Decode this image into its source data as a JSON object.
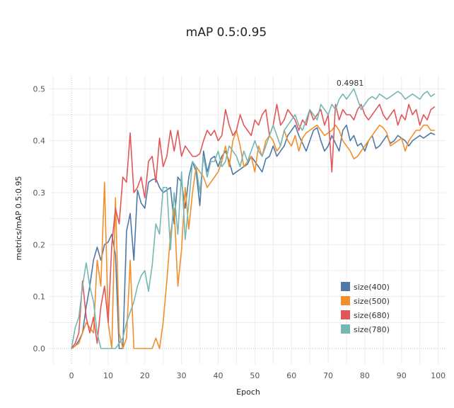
{
  "chart_data": {
    "type": "line",
    "title": "mAP 0.5:0.95",
    "xlabel": "Epoch",
    "ylabel": "metrics/mAP 0.5:0.95",
    "xlim": [
      -6,
      102
    ],
    "ylim": [
      -0.03,
      0.525
    ],
    "xticks": [
      "0",
      "10",
      "20",
      "30",
      "40",
      "50",
      "60",
      "70",
      "80",
      "90",
      "100"
    ],
    "yticks": [
      "0.0",
      "0.1",
      "0.2",
      "0.3",
      "0.4",
      "0.5"
    ],
    "grid": true,
    "legend_position": "bottom-right",
    "annotation": {
      "text": "0.4981",
      "x": 76,
      "y": 0.498
    },
    "series": [
      {
        "name": "size(400)",
        "color": "#4e79a7",
        "values": [
          0.0,
          0.005,
          0.015,
          0.03,
          0.08,
          0.12,
          0.17,
          0.195,
          0.17,
          0.2,
          0.205,
          0.22,
          0.18,
          0.0,
          0.0,
          0.225,
          0.26,
          0.17,
          0.305,
          0.28,
          0.27,
          0.32,
          0.325,
          0.327,
          0.31,
          0.3,
          0.305,
          0.31,
          0.24,
          0.33,
          0.32,
          0.27,
          0.33,
          0.36,
          0.34,
          0.275,
          0.38,
          0.34,
          0.365,
          0.37,
          0.35,
          0.37,
          0.38,
          0.36,
          0.335,
          0.34,
          0.345,
          0.35,
          0.355,
          0.37,
          0.36,
          0.35,
          0.34,
          0.365,
          0.37,
          0.39,
          0.37,
          0.38,
          0.39,
          0.41,
          0.42,
          0.43,
          0.41,
          0.395,
          0.38,
          0.4,
          0.42,
          0.425,
          0.4,
          0.38,
          0.39,
          0.41,
          0.395,
          0.38,
          0.42,
          0.43,
          0.4,
          0.41,
          0.39,
          0.395,
          0.38,
          0.4,
          0.41,
          0.385,
          0.39,
          0.4,
          0.41,
          0.395,
          0.4,
          0.41,
          0.405,
          0.4,
          0.39,
          0.4,
          0.405,
          0.41,
          0.405,
          0.41,
          0.415,
          0.412
        ]
      },
      {
        "name": "size(500)",
        "color": "#f28e2b",
        "values": [
          0.0,
          0.005,
          0.01,
          0.03,
          0.05,
          0.04,
          0.03,
          0.17,
          0.12,
          0.32,
          0.05,
          0.0,
          0.29,
          0.03,
          0.0,
          0.02,
          0.17,
          0.0,
          0.0,
          0.0,
          0.0,
          0.0,
          0.0,
          0.02,
          0.0,
          0.05,
          0.13,
          0.22,
          0.27,
          0.12,
          0.19,
          0.31,
          0.23,
          0.3,
          0.35,
          0.34,
          0.33,
          0.31,
          0.32,
          0.33,
          0.34,
          0.36,
          0.39,
          0.35,
          0.4,
          0.42,
          0.39,
          0.35,
          0.36,
          0.37,
          0.34,
          0.39,
          0.37,
          0.4,
          0.41,
          0.4,
          0.38,
          0.39,
          0.42,
          0.4,
          0.39,
          0.41,
          0.38,
          0.405,
          0.415,
          0.42,
          0.425,
          0.43,
          0.42,
          0.41,
          0.415,
          0.42,
          0.43,
          0.42,
          0.4,
          0.39,
          0.38,
          0.365,
          0.37,
          0.38,
          0.39,
          0.4,
          0.41,
          0.42,
          0.43,
          0.425,
          0.415,
          0.39,
          0.395,
          0.4,
          0.405,
          0.38,
          0.4,
          0.41,
          0.42,
          0.42,
          0.43,
          0.43,
          0.42,
          0.42
        ]
      },
      {
        "name": "size(680)",
        "color": "#e15759",
        "values": [
          0.0,
          0.01,
          0.03,
          0.13,
          0.06,
          0.03,
          0.06,
          0.01,
          0.08,
          0.12,
          0.05,
          0.2,
          0.27,
          0.24,
          0.33,
          0.32,
          0.415,
          0.3,
          0.31,
          0.33,
          0.29,
          0.36,
          0.37,
          0.32,
          0.405,
          0.35,
          0.37,
          0.42,
          0.38,
          0.42,
          0.37,
          0.39,
          0.38,
          0.37,
          0.37,
          0.375,
          0.4,
          0.42,
          0.41,
          0.42,
          0.4,
          0.41,
          0.46,
          0.43,
          0.41,
          0.42,
          0.45,
          0.43,
          0.42,
          0.41,
          0.44,
          0.43,
          0.45,
          0.46,
          0.41,
          0.43,
          0.47,
          0.43,
          0.44,
          0.46,
          0.45,
          0.44,
          0.42,
          0.44,
          0.43,
          0.46,
          0.44,
          0.45,
          0.46,
          0.43,
          0.45,
          0.34,
          0.47,
          0.44,
          0.46,
          0.45,
          0.45,
          0.44,
          0.46,
          0.47,
          0.45,
          0.44,
          0.45,
          0.46,
          0.47,
          0.45,
          0.44,
          0.45,
          0.46,
          0.43,
          0.45,
          0.44,
          0.47,
          0.45,
          0.46,
          0.43,
          0.45,
          0.44,
          0.46,
          0.465
        ]
      },
      {
        "name": "size(780)",
        "color": "#76b7b2",
        "values": [
          0.0,
          0.04,
          0.06,
          0.12,
          0.165,
          0.12,
          0.09,
          0.03,
          0.0,
          0.0,
          0.0,
          0.0,
          0.0,
          0.01,
          0.02,
          0.05,
          0.07,
          0.09,
          0.12,
          0.14,
          0.15,
          0.11,
          0.16,
          0.24,
          0.22,
          0.31,
          0.31,
          0.19,
          0.3,
          0.22,
          0.34,
          0.21,
          0.28,
          0.36,
          0.35,
          0.3,
          0.37,
          0.33,
          0.36,
          0.36,
          0.38,
          0.35,
          0.36,
          0.39,
          0.38,
          0.37,
          0.35,
          0.38,
          0.36,
          0.38,
          0.4,
          0.38,
          0.37,
          0.39,
          0.41,
          0.43,
          0.41,
          0.39,
          0.42,
          0.43,
          0.44,
          0.45,
          0.43,
          0.42,
          0.44,
          0.46,
          0.45,
          0.44,
          0.47,
          0.46,
          0.45,
          0.47,
          0.46,
          0.48,
          0.49,
          0.48,
          0.49,
          0.5,
          0.48,
          0.46,
          0.47,
          0.48,
          0.485,
          0.48,
          0.49,
          0.485,
          0.48,
          0.485,
          0.49,
          0.495,
          0.49,
          0.48,
          0.485,
          0.49,
          0.485,
          0.48,
          0.49,
          0.495,
          0.485,
          0.49
        ]
      }
    ]
  }
}
